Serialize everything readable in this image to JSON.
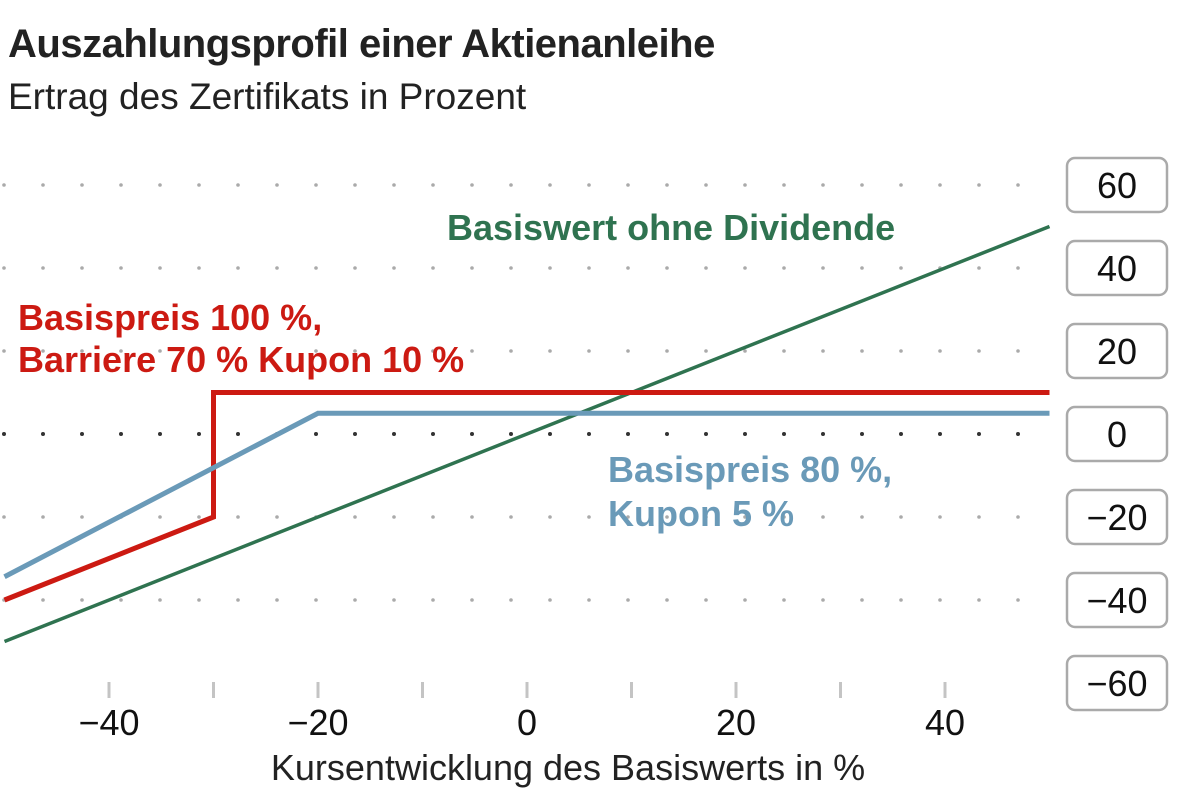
{
  "chart_data": {
    "type": "line",
    "title": "Auszahlungsprofil einer Aktienanleihe",
    "subtitle": "Ertrag des Zertifikats in Prozent",
    "xlabel": "Kursentwicklung des Basiswerts in %",
    "ylabel": "",
    "xlim": [
      -50,
      50
    ],
    "ylim": [
      -60,
      60
    ],
    "xticks": [
      -40,
      -20,
      0,
      20,
      40
    ],
    "xticks_labels": [
      "−40",
      "−20",
      "0",
      "20",
      "40"
    ],
    "xminor_ticks": [
      -40,
      -30,
      -20,
      -10,
      0,
      10,
      20,
      30,
      40
    ],
    "yticks": [
      60,
      40,
      20,
      0,
      -20,
      -40,
      -60
    ],
    "yticks_labels": [
      "60",
      "40",
      "20",
      "0",
      "−20",
      "−40",
      "−60"
    ],
    "grid": "dotted horizontal",
    "series": [
      {
        "name": "Basiswert ohne Dividende",
        "color": "#2f7350",
        "points": [
          [
            -50,
            -50
          ],
          [
            50,
            50
          ]
        ]
      },
      {
        "name": "Basispreis 100 %, Barriere 70 % Kupon 10 %",
        "label_lines": [
          "Basispreis 100 %,",
          "Barriere 70 % Kupon 10 %"
        ],
        "color": "#cc1a12",
        "points": [
          [
            -50,
            -40
          ],
          [
            -30,
            -20
          ],
          [
            -30,
            10
          ],
          [
            50,
            10
          ]
        ]
      },
      {
        "name": "Basispreis 80 %, Kupon 5 %",
        "label_lines": [
          "Basispreis 80 %,",
          "Kupon 5 %"
        ],
        "color": "#6a9ab8",
        "points": [
          [
            -50,
            -34.4
          ],
          [
            -20,
            5
          ],
          [
            50,
            5
          ]
        ]
      }
    ]
  }
}
